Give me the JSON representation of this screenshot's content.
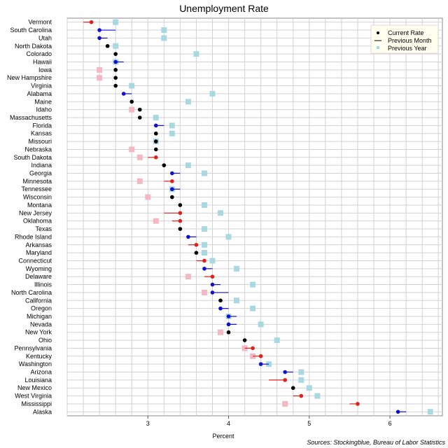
{
  "chart_data": {
    "type": "scatter",
    "title": "Unemployment Rate",
    "xlabel": "Percent",
    "xlim": [
      2.0,
      6.65
    ],
    "x_ticks": [
      3,
      4,
      5,
      6
    ],
    "grid": true,
    "legend_position": "top-right",
    "legend": {
      "current": "Current Rate",
      "previous_month": "Previous Month",
      "previous_year": "Previous Year"
    },
    "source": "Sources: Stockingblue, Bureau of Labor Statistics",
    "colors": {
      "increase": "#e0201c",
      "decrease": "#1010d0",
      "unchanged": "#000000",
      "year_higher": "#aad8e0",
      "year_lower": "#f4b8c4"
    },
    "states": [
      {
        "name": "Vermont",
        "current": 2.3,
        "prev_month": 2.2,
        "prev_year": 2.6
      },
      {
        "name": "South Carolina",
        "current": 2.4,
        "prev_month": 2.6,
        "prev_year": 3.2
      },
      {
        "name": "Utah",
        "current": 2.4,
        "prev_month": 2.5,
        "prev_year": 3.2
      },
      {
        "name": "North Dakota",
        "current": 2.5,
        "prev_month": 2.5,
        "prev_year": 2.6
      },
      {
        "name": "Colorado",
        "current": 2.6,
        "prev_month": 2.6,
        "prev_year": 3.6
      },
      {
        "name": "Hawaii",
        "current": 2.6,
        "prev_month": 2.7,
        "prev_year": 2.6
      },
      {
        "name": "Iowa",
        "current": 2.6,
        "prev_month": 2.6,
        "prev_year": 2.4
      },
      {
        "name": "New Hampshire",
        "current": 2.6,
        "prev_month": 2.6,
        "prev_year": 2.4
      },
      {
        "name": "Virginia",
        "current": 2.6,
        "prev_month": 2.6,
        "prev_year": 2.8
      },
      {
        "name": "Alabama",
        "current": 2.7,
        "prev_month": 2.8,
        "prev_year": 3.8
      },
      {
        "name": "Maine",
        "current": 2.8,
        "prev_month": 2.8,
        "prev_year": 3.5
      },
      {
        "name": "Idaho",
        "current": 2.9,
        "prev_month": 2.9,
        "prev_year": 2.8
      },
      {
        "name": "Massachusetts",
        "current": 2.9,
        "prev_month": 2.9,
        "prev_year": 3.1
      },
      {
        "name": "Florida",
        "current": 3.1,
        "prev_month": 3.2,
        "prev_year": 3.3
      },
      {
        "name": "Kansas",
        "current": 3.1,
        "prev_month": 3.1,
        "prev_year": 3.3
      },
      {
        "name": "Missouri",
        "current": 3.1,
        "prev_month": 3.1,
        "prev_year": 3.1
      },
      {
        "name": "Nebraska",
        "current": 3.1,
        "prev_month": 3.1,
        "prev_year": 2.8
      },
      {
        "name": "South Dakota",
        "current": 3.1,
        "prev_month": 3.0,
        "prev_year": 2.9
      },
      {
        "name": "Indiana",
        "current": 3.2,
        "prev_month": 3.2,
        "prev_year": 3.5
      },
      {
        "name": "Georgia",
        "current": 3.3,
        "prev_month": 3.4,
        "prev_year": 3.7
      },
      {
        "name": "Minnesota",
        "current": 3.3,
        "prev_month": 3.2,
        "prev_year": 2.9
      },
      {
        "name": "Tennessee",
        "current": 3.3,
        "prev_month": 3.4,
        "prev_year": 3.3
      },
      {
        "name": "Wisconsin",
        "current": 3.3,
        "prev_month": 3.3,
        "prev_year": 3.0
      },
      {
        "name": "Montana",
        "current": 3.4,
        "prev_month": 3.4,
        "prev_year": 3.7
      },
      {
        "name": "New Jersey",
        "current": 3.4,
        "prev_month": 3.2,
        "prev_year": 3.9
      },
      {
        "name": "Oklahoma",
        "current": 3.4,
        "prev_month": 3.3,
        "prev_year": 3.1
      },
      {
        "name": "Texas",
        "current": 3.4,
        "prev_month": 3.4,
        "prev_year": 3.7
      },
      {
        "name": "Rhode Island",
        "current": 3.5,
        "prev_month": 3.6,
        "prev_year": 4.0
      },
      {
        "name": "Arkansas",
        "current": 3.6,
        "prev_month": 3.5,
        "prev_year": 3.7
      },
      {
        "name": "Maryland",
        "current": 3.6,
        "prev_month": 3.6,
        "prev_year": 3.7
      },
      {
        "name": "Connecticut",
        "current": 3.7,
        "prev_month": 3.6,
        "prev_year": 3.8
      },
      {
        "name": "Wyoming",
        "current": 3.7,
        "prev_month": 3.8,
        "prev_year": 4.1
      },
      {
        "name": "Delaware",
        "current": 3.8,
        "prev_month": 3.7,
        "prev_year": 3.5
      },
      {
        "name": "Illinois",
        "current": 3.8,
        "prev_month": 3.9,
        "prev_year": 4.3
      },
      {
        "name": "North Carolina",
        "current": 3.8,
        "prev_month": 4.0,
        "prev_year": 3.7
      },
      {
        "name": "California",
        "current": 3.9,
        "prev_month": 3.9,
        "prev_year": 4.1
      },
      {
        "name": "Oregon",
        "current": 3.9,
        "prev_month": 4.0,
        "prev_year": 4.3
      },
      {
        "name": "Michigan",
        "current": 4.0,
        "prev_month": 4.1,
        "prev_year": 4.0
      },
      {
        "name": "Nevada",
        "current": 4.0,
        "prev_month": 4.1,
        "prev_year": 4.4
      },
      {
        "name": "New York",
        "current": 4.0,
        "prev_month": 4.0,
        "prev_year": 3.9
      },
      {
        "name": "Ohio",
        "current": 4.2,
        "prev_month": 4.2,
        "prev_year": 4.6
      },
      {
        "name": "Pennsylvania",
        "current": 4.3,
        "prev_month": 4.2,
        "prev_year": 4.2
      },
      {
        "name": "Kentucky",
        "current": 4.4,
        "prev_month": 4.3,
        "prev_year": 4.3
      },
      {
        "name": "Washington",
        "current": 4.4,
        "prev_month": 4.5,
        "prev_year": 4.5
      },
      {
        "name": "Arizona",
        "current": 4.7,
        "prev_month": 4.8,
        "prev_year": 4.9
      },
      {
        "name": "Louisiana",
        "current": 4.7,
        "prev_month": 4.5,
        "prev_year": 4.9
      },
      {
        "name": "New Mexico",
        "current": 4.8,
        "prev_month": 4.8,
        "prev_year": 5.0
      },
      {
        "name": "West Virginia",
        "current": 4.9,
        "prev_month": 4.8,
        "prev_year": 5.1
      },
      {
        "name": "Mississippi",
        "current": 5.6,
        "prev_month": 5.5,
        "prev_year": 4.7
      },
      {
        "name": "Alaska",
        "current": 6.1,
        "prev_month": 6.2,
        "prev_year": 6.5
      }
    ]
  }
}
